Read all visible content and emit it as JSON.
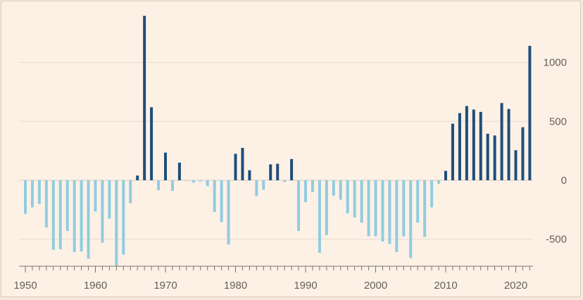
{
  "chart_data": {
    "type": "bar",
    "title": "",
    "xlabel": "",
    "ylabel": "",
    "ylim": [
      -730,
      1400
    ],
    "xlim": [
      1949,
      2023
    ],
    "grid": true,
    "y_axis_position": "right",
    "x_tick_labels": [
      "1950",
      "1960",
      "1970",
      "1980",
      "1990",
      "2000",
      "2010",
      "2020"
    ],
    "y_tick_labels": [
      "1000",
      "500",
      "0",
      "-500"
    ],
    "y_ticks": [
      1000,
      500,
      0,
      -500
    ],
    "colors": {
      "positive": "#1f4e79",
      "negative": "#91cce0",
      "grid": "#e8dcd0",
      "axis": "#7a746e"
    },
    "years": [
      1950,
      1951,
      1952,
      1953,
      1954,
      1955,
      1956,
      1957,
      1958,
      1959,
      1960,
      1961,
      1962,
      1963,
      1964,
      1965,
      1966,
      1967,
      1968,
      1969,
      1970,
      1971,
      1972,
      1973,
      1974,
      1975,
      1976,
      1977,
      1978,
      1979,
      1980,
      1981,
      1982,
      1983,
      1984,
      1985,
      1986,
      1987,
      1988,
      1989,
      1990,
      1991,
      1992,
      1993,
      1994,
      1995,
      1996,
      1997,
      1998,
      1999,
      2000,
      2001,
      2002,
      2003,
      2004,
      2005,
      2006,
      2007,
      2008,
      2009,
      2010,
      2011,
      2012,
      2013,
      2014,
      2015,
      2016,
      2017,
      2018,
      2019,
      2020,
      2021,
      2022
    ],
    "values": [
      -285,
      -230,
      -200,
      -400,
      -590,
      -585,
      -430,
      -610,
      -605,
      -665,
      -265,
      -530,
      -325,
      -725,
      -630,
      -195,
      40,
      1395,
      620,
      -85,
      235,
      -90,
      150,
      -5,
      -20,
      -10,
      -50,
      -270,
      -355,
      -545,
      225,
      275,
      85,
      -135,
      -80,
      135,
      140,
      -15,
      180,
      -430,
      -185,
      -100,
      -615,
      -465,
      -130,
      -165,
      -280,
      -315,
      -360,
      -475,
      -475,
      -520,
      -540,
      -610,
      -475,
      -660,
      -360,
      -480,
      -230,
      -30,
      80,
      480,
      570,
      630,
      600,
      580,
      395,
      380,
      655,
      605,
      255,
      450,
      1140
    ]
  }
}
